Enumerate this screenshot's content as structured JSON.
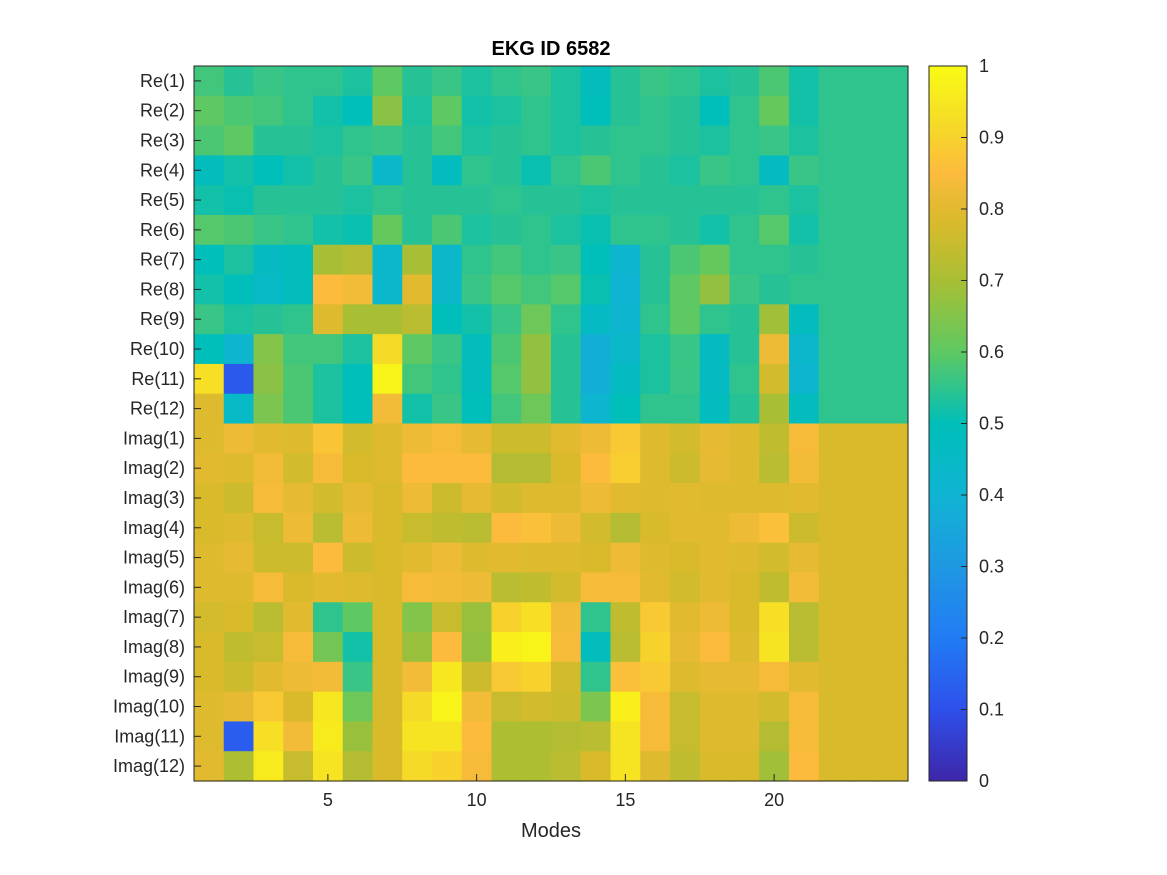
{
  "chart_data": {
    "type": "heatmap",
    "title": "EKG ID 6582",
    "xlabel": "Modes",
    "ylabel": "",
    "x_ticks": [
      5,
      10,
      15,
      20
    ],
    "x_range": [
      0.5,
      24.5
    ],
    "colorbar": {
      "range": [
        0,
        1
      ],
      "ticks": [
        0,
        0.1,
        0.2,
        0.3,
        0.4,
        0.5,
        0.6,
        0.7,
        0.8,
        0.9,
        1
      ],
      "colormap": "parula"
    },
    "grid": false,
    "rows": [
      "Re(1)",
      "Re(2)",
      "Re(3)",
      "Re(4)",
      "Re(5)",
      "Re(6)",
      "Re(7)",
      "Re(8)",
      "Re(9)",
      "Re(10)",
      "Re(11)",
      "Re(12)",
      "Imag(1)",
      "Imag(2)",
      "Imag(3)",
      "Imag(4)",
      "Imag(5)",
      "Imag(6)",
      "Imag(7)",
      "Imag(8)",
      "Imag(9)",
      "Imag(10)",
      "Imag(11)",
      "Imag(12)"
    ],
    "columns": [
      1,
      2,
      3,
      4,
      5,
      6,
      7,
      8,
      9,
      10,
      11,
      12,
      13,
      14,
      15,
      16,
      17,
      18,
      19,
      20,
      21,
      22,
      23,
      24
    ],
    "values": [
      [
        0.57,
        0.54,
        0.56,
        0.55,
        0.55,
        0.53,
        0.6,
        0.54,
        0.56,
        0.53,
        0.55,
        0.56,
        0.53,
        0.49,
        0.54,
        0.56,
        0.55,
        0.53,
        0.54,
        0.58,
        0.52,
        0.55,
        0.55,
        0.55
      ],
      [
        0.6,
        0.58,
        0.57,
        0.55,
        0.52,
        0.5,
        0.66,
        0.53,
        0.6,
        0.52,
        0.53,
        0.55,
        0.53,
        0.5,
        0.54,
        0.55,
        0.54,
        0.5,
        0.55,
        0.61,
        0.52,
        0.55,
        0.55,
        0.55
      ],
      [
        0.58,
        0.6,
        0.54,
        0.54,
        0.53,
        0.55,
        0.56,
        0.54,
        0.57,
        0.53,
        0.54,
        0.55,
        0.53,
        0.54,
        0.55,
        0.55,
        0.54,
        0.53,
        0.55,
        0.56,
        0.53,
        0.55,
        0.55,
        0.55
      ],
      [
        0.49,
        0.52,
        0.5,
        0.52,
        0.54,
        0.56,
        0.44,
        0.54,
        0.48,
        0.55,
        0.54,
        0.51,
        0.55,
        0.58,
        0.55,
        0.54,
        0.53,
        0.56,
        0.55,
        0.47,
        0.56,
        0.55,
        0.55,
        0.55
      ],
      [
        0.52,
        0.51,
        0.54,
        0.54,
        0.54,
        0.53,
        0.55,
        0.54,
        0.54,
        0.54,
        0.55,
        0.54,
        0.54,
        0.53,
        0.54,
        0.54,
        0.54,
        0.54,
        0.54,
        0.55,
        0.53,
        0.55,
        0.55,
        0.55
      ],
      [
        0.59,
        0.58,
        0.56,
        0.55,
        0.52,
        0.51,
        0.61,
        0.54,
        0.58,
        0.53,
        0.54,
        0.55,
        0.53,
        0.51,
        0.55,
        0.55,
        0.54,
        0.52,
        0.55,
        0.59,
        0.52,
        0.55,
        0.55,
        0.55
      ],
      [
        0.5,
        0.53,
        0.47,
        0.49,
        0.7,
        0.72,
        0.43,
        0.7,
        0.44,
        0.55,
        0.57,
        0.55,
        0.56,
        0.5,
        0.42,
        0.54,
        0.58,
        0.61,
        0.55,
        0.55,
        0.54,
        0.55,
        0.55,
        0.55
      ],
      [
        0.52,
        0.5,
        0.45,
        0.49,
        0.85,
        0.83,
        0.43,
        0.8,
        0.44,
        0.56,
        0.59,
        0.57,
        0.59,
        0.51,
        0.4,
        0.54,
        0.6,
        0.67,
        0.56,
        0.54,
        0.55,
        0.55,
        0.55,
        0.55
      ],
      [
        0.56,
        0.53,
        0.54,
        0.55,
        0.79,
        0.7,
        0.7,
        0.73,
        0.5,
        0.52,
        0.56,
        0.62,
        0.55,
        0.46,
        0.42,
        0.55,
        0.6,
        0.55,
        0.54,
        0.69,
        0.48,
        0.55,
        0.55,
        0.55
      ],
      [
        0.5,
        0.42,
        0.65,
        0.57,
        0.57,
        0.53,
        0.92,
        0.6,
        0.56,
        0.49,
        0.58,
        0.67,
        0.54,
        0.38,
        0.44,
        0.53,
        0.56,
        0.47,
        0.54,
        0.82,
        0.43,
        0.55,
        0.55,
        0.55
      ],
      [
        0.93,
        0.12,
        0.66,
        0.58,
        0.53,
        0.5,
        0.98,
        0.57,
        0.55,
        0.49,
        0.59,
        0.67,
        0.54,
        0.38,
        0.47,
        0.53,
        0.56,
        0.47,
        0.55,
        0.77,
        0.42,
        0.55,
        0.55,
        0.55
      ],
      [
        0.79,
        0.45,
        0.64,
        0.58,
        0.53,
        0.5,
        0.83,
        0.52,
        0.56,
        0.5,
        0.57,
        0.62,
        0.54,
        0.42,
        0.5,
        0.55,
        0.55,
        0.48,
        0.54,
        0.7,
        0.48,
        0.55,
        0.55,
        0.55
      ],
      [
        0.79,
        0.82,
        0.8,
        0.79,
        0.87,
        0.77,
        0.79,
        0.82,
        0.84,
        0.81,
        0.76,
        0.76,
        0.8,
        0.82,
        0.88,
        0.79,
        0.77,
        0.81,
        0.79,
        0.74,
        0.84,
        0.78,
        0.78,
        0.78
      ],
      [
        0.8,
        0.79,
        0.83,
        0.77,
        0.84,
        0.78,
        0.79,
        0.85,
        0.85,
        0.85,
        0.72,
        0.72,
        0.78,
        0.85,
        0.89,
        0.79,
        0.76,
        0.81,
        0.79,
        0.73,
        0.83,
        0.78,
        0.78,
        0.78
      ],
      [
        0.78,
        0.76,
        0.84,
        0.81,
        0.77,
        0.81,
        0.78,
        0.82,
        0.76,
        0.81,
        0.77,
        0.79,
        0.79,
        0.82,
        0.8,
        0.79,
        0.8,
        0.79,
        0.79,
        0.79,
        0.8,
        0.78,
        0.78,
        0.78
      ],
      [
        0.78,
        0.79,
        0.75,
        0.82,
        0.73,
        0.82,
        0.78,
        0.75,
        0.74,
        0.73,
        0.85,
        0.86,
        0.82,
        0.77,
        0.72,
        0.78,
        0.8,
        0.8,
        0.82,
        0.86,
        0.76,
        0.78,
        0.78,
        0.78
      ],
      [
        0.79,
        0.81,
        0.76,
        0.76,
        0.85,
        0.76,
        0.78,
        0.8,
        0.82,
        0.79,
        0.8,
        0.79,
        0.79,
        0.78,
        0.82,
        0.79,
        0.78,
        0.8,
        0.79,
        0.77,
        0.81,
        0.78,
        0.78,
        0.78
      ],
      [
        0.79,
        0.79,
        0.84,
        0.78,
        0.8,
        0.79,
        0.78,
        0.84,
        0.83,
        0.82,
        0.73,
        0.74,
        0.77,
        0.84,
        0.84,
        0.8,
        0.77,
        0.8,
        0.78,
        0.74,
        0.83,
        0.78,
        0.78,
        0.78
      ],
      [
        0.77,
        0.78,
        0.73,
        0.8,
        0.55,
        0.6,
        0.78,
        0.65,
        0.75,
        0.68,
        0.9,
        0.93,
        0.83,
        0.55,
        0.74,
        0.88,
        0.8,
        0.82,
        0.78,
        0.93,
        0.73,
        0.78,
        0.78,
        0.78
      ],
      [
        0.78,
        0.74,
        0.75,
        0.84,
        0.63,
        0.52,
        0.78,
        0.68,
        0.85,
        0.67,
        0.97,
        0.98,
        0.84,
        0.49,
        0.73,
        0.9,
        0.81,
        0.85,
        0.79,
        0.94,
        0.73,
        0.78,
        0.78,
        0.78
      ],
      [
        0.78,
        0.76,
        0.8,
        0.82,
        0.83,
        0.56,
        0.78,
        0.83,
        0.95,
        0.76,
        0.88,
        0.9,
        0.77,
        0.55,
        0.86,
        0.88,
        0.79,
        0.81,
        0.81,
        0.84,
        0.8,
        0.78,
        0.78,
        0.78
      ],
      [
        0.79,
        0.81,
        0.88,
        0.78,
        0.95,
        0.62,
        0.78,
        0.92,
        0.98,
        0.83,
        0.75,
        0.77,
        0.76,
        0.64,
        0.97,
        0.84,
        0.75,
        0.79,
        0.79,
        0.77,
        0.84,
        0.78,
        0.78,
        0.78
      ],
      [
        0.79,
        0.13,
        0.93,
        0.83,
        0.96,
        0.68,
        0.78,
        0.94,
        0.94,
        0.85,
        0.71,
        0.71,
        0.72,
        0.73,
        0.94,
        0.84,
        0.75,
        0.79,
        0.79,
        0.72,
        0.84,
        0.78,
        0.78,
        0.78
      ],
      [
        0.8,
        0.71,
        0.96,
        0.75,
        0.94,
        0.72,
        0.78,
        0.92,
        0.9,
        0.84,
        0.71,
        0.71,
        0.73,
        0.78,
        0.94,
        0.79,
        0.74,
        0.78,
        0.78,
        0.69,
        0.85,
        0.78,
        0.78,
        0.78
      ]
    ]
  }
}
